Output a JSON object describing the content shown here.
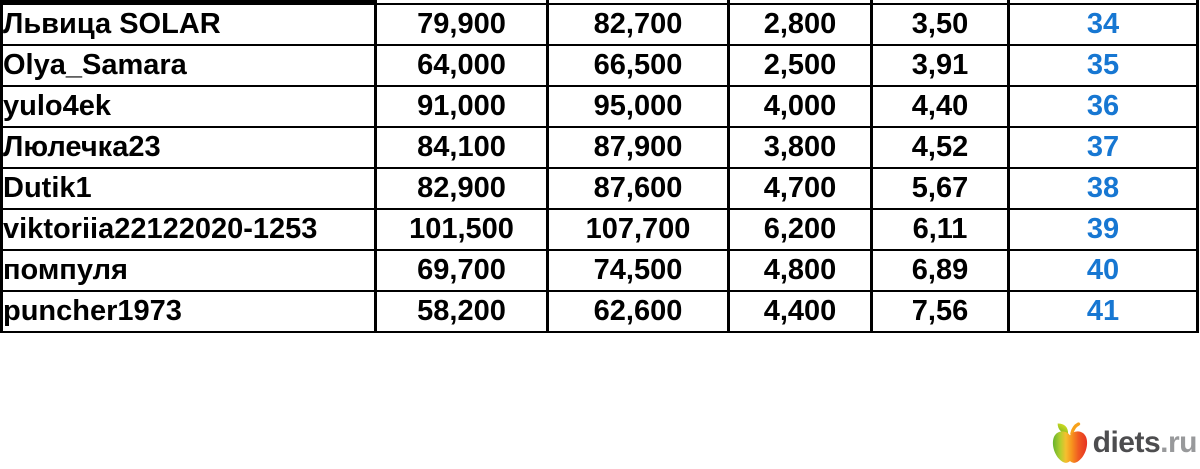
{
  "table": {
    "rows": [
      {
        "name": "Львица SOLAR",
        "values": [
          "79,900",
          "82,700",
          "2,800",
          "3,50"
        ],
        "row_number": "34"
      },
      {
        "name": "Olya_Samara",
        "values": [
          "64,000",
          "66,500",
          "2,500",
          "3,91"
        ],
        "row_number": "35"
      },
      {
        "name": "yulo4ek",
        "values": [
          "91,000",
          "95,000",
          "4,000",
          "4,40"
        ],
        "row_number": "36"
      },
      {
        "name": "Люлечка23",
        "values": [
          "84,100",
          "87,900",
          "3,800",
          "4,52"
        ],
        "row_number": "37"
      },
      {
        "name": "Dutik1",
        "values": [
          "82,900",
          "87,600",
          "4,700",
          "5,67"
        ],
        "row_number": "38"
      },
      {
        "name": "viktoriia22122020-1253",
        "values": [
          "101,500",
          "107,700",
          "6,200",
          "6,11"
        ],
        "row_number": "39"
      },
      {
        "name": "помпуля",
        "values": [
          "69,700",
          "74,500",
          "4,800",
          "6,89"
        ],
        "row_number": "40"
      },
      {
        "name": "puncher1973",
        "values": [
          "58,200",
          "62,600",
          "4,400",
          "7,56"
        ],
        "row_number": "41"
      }
    ],
    "row_number_color": "#1777d2"
  },
  "watermark": {
    "brand_bold": "diets",
    "brand_suffix": ".ru"
  },
  "colors": {
    "background": "#ffffff",
    "border": "#000000",
    "text": "#000000",
    "row_number_blue": "#1777d2",
    "brand_dark": "#4d4d4f",
    "brand_light": "#98999b",
    "apple_green": "#66b32e",
    "apple_yellow": "#f5c02f",
    "apple_orange": "#f7941e",
    "apple_red": "#e63323"
  }
}
